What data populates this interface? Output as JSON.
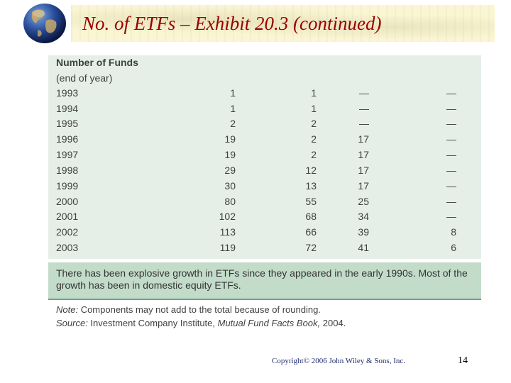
{
  "slide": {
    "title": "No. of ETFs – Exhibit 20.3 (continued)",
    "copyright": "Copyright© 2006 John Wiley & Sons, Inc.",
    "page_number": "14"
  },
  "table": {
    "heading": "Number of Funds",
    "subheading": "(end of year)",
    "rows": [
      {
        "year": "1993",
        "c1": "1",
        "c2": "1",
        "c3": "—",
        "c4": "—"
      },
      {
        "year": "1994",
        "c1": "1",
        "c2": "1",
        "c3": "—",
        "c4": "—"
      },
      {
        "year": "1995",
        "c1": "2",
        "c2": "2",
        "c3": "—",
        "c4": "—"
      },
      {
        "year": "1996",
        "c1": "19",
        "c2": "2",
        "c3": "17",
        "c4": "—"
      },
      {
        "year": "1997",
        "c1": "19",
        "c2": "2",
        "c3": "17",
        "c4": "—"
      },
      {
        "year": "1998",
        "c1": "29",
        "c2": "12",
        "c3": "17",
        "c4": "—"
      },
      {
        "year": "1999",
        "c1": "30",
        "c2": "13",
        "c3": "17",
        "c4": "—"
      },
      {
        "year": "2000",
        "c1": "80",
        "c2": "55",
        "c3": "25",
        "c4": "—"
      },
      {
        "year": "2001",
        "c1": "102",
        "c2": "68",
        "c3": "34",
        "c4": "—"
      },
      {
        "year": "2002",
        "c1": "113",
        "c2": "66",
        "c3": "39",
        "c4": "8"
      },
      {
        "year": "2003",
        "c1": "119",
        "c2": "72",
        "c3": "41",
        "c4": "6"
      }
    ],
    "summary": "There has been explosive growth in ETFs since they appeared in the early 1990s. Most of the growth has been in domestic equity ETFs."
  },
  "notes": {
    "note_label": "Note:",
    "note_text": " Components may not add to the total because of rounding.",
    "source_label": "Source:",
    "source_text_1": " Investment Company Institute, ",
    "source_book": "Mutual Fund Facts Book,",
    "source_text_2": " 2004."
  },
  "colors": {
    "title": "#990000",
    "panel": "#e5efe8",
    "summary_band": "#c3dcca",
    "copyright": "#1f2b6e"
  },
  "icons": {
    "logo": "globe-icon"
  }
}
